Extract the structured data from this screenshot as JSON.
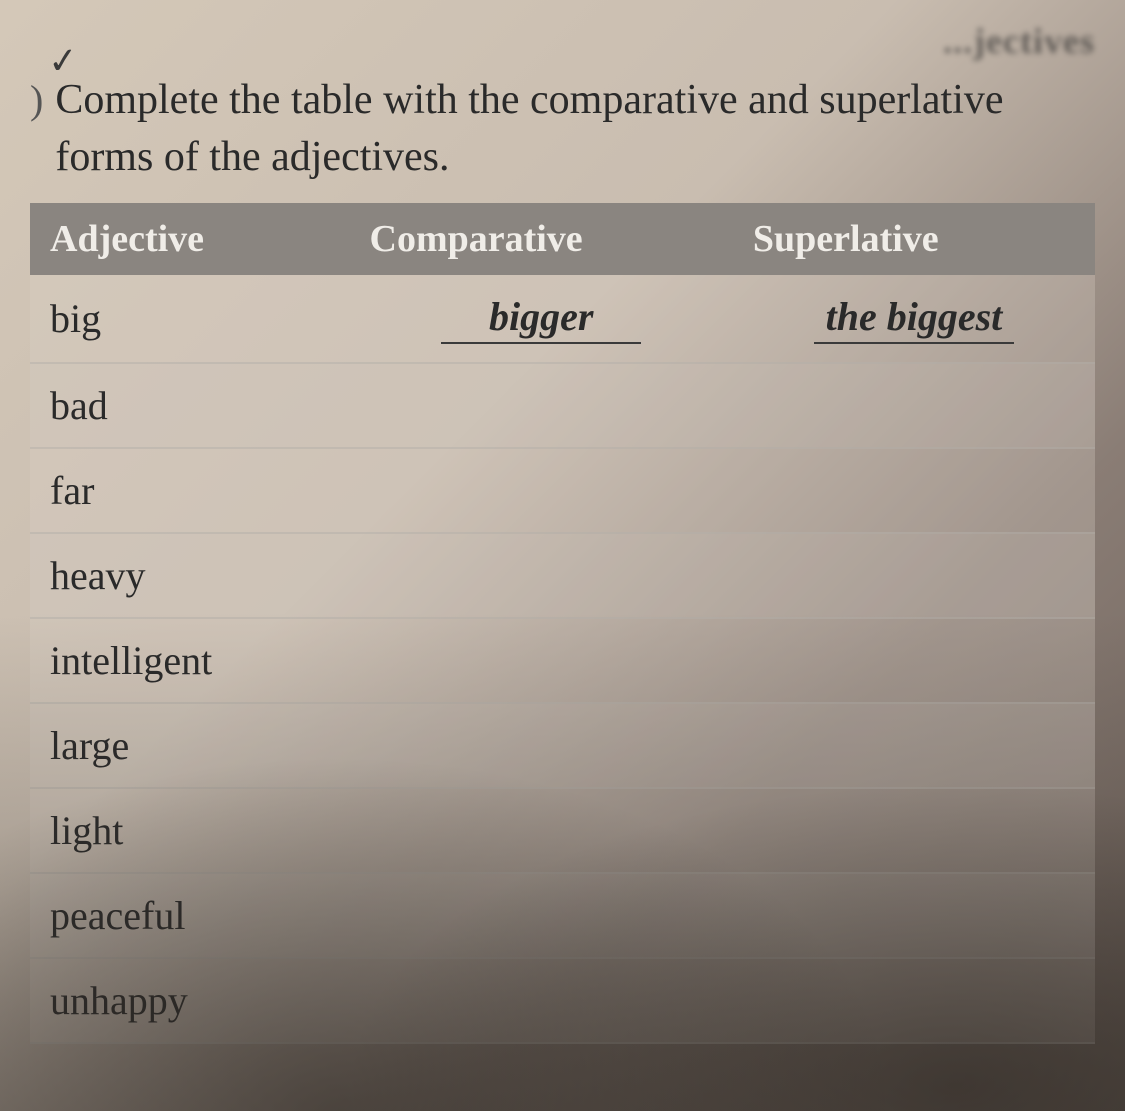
{
  "header_partial": "...jectives",
  "instruction": "Complete the table with the comparative and superlative forms of the adjectives.",
  "table": {
    "columns": [
      "Adjective",
      "Comparative",
      "Superlative"
    ],
    "rows": [
      {
        "adjective": "big",
        "comparative": "bigger",
        "superlative": "the biggest"
      },
      {
        "adjective": "bad",
        "comparative": "",
        "superlative": ""
      },
      {
        "adjective": "far",
        "comparative": "",
        "superlative": ""
      },
      {
        "adjective": "heavy",
        "comparative": "",
        "superlative": ""
      },
      {
        "adjective": "intelligent",
        "comparative": "",
        "superlative": ""
      },
      {
        "adjective": "large",
        "comparative": "",
        "superlative": ""
      },
      {
        "adjective": "light",
        "comparative": "",
        "superlative": ""
      },
      {
        "adjective": "peaceful",
        "comparative": "",
        "superlative": ""
      },
      {
        "adjective": "unhappy",
        "comparative": "",
        "superlative": ""
      }
    ],
    "header_bg": "#8a8580",
    "header_text_color": "#f0ede8",
    "row_border_color": "#b4afaa",
    "column_widths": [
      "30%",
      "36%",
      "34%"
    ]
  },
  "colors": {
    "page_bg_light": "#d4c8b8",
    "page_bg_dark": "#6b5f58",
    "text_color": "#2a2a2a"
  },
  "typography": {
    "instruction_fontsize": 42,
    "header_fontsize": 38,
    "cell_fontsize": 40,
    "answer_font": "cursive"
  }
}
